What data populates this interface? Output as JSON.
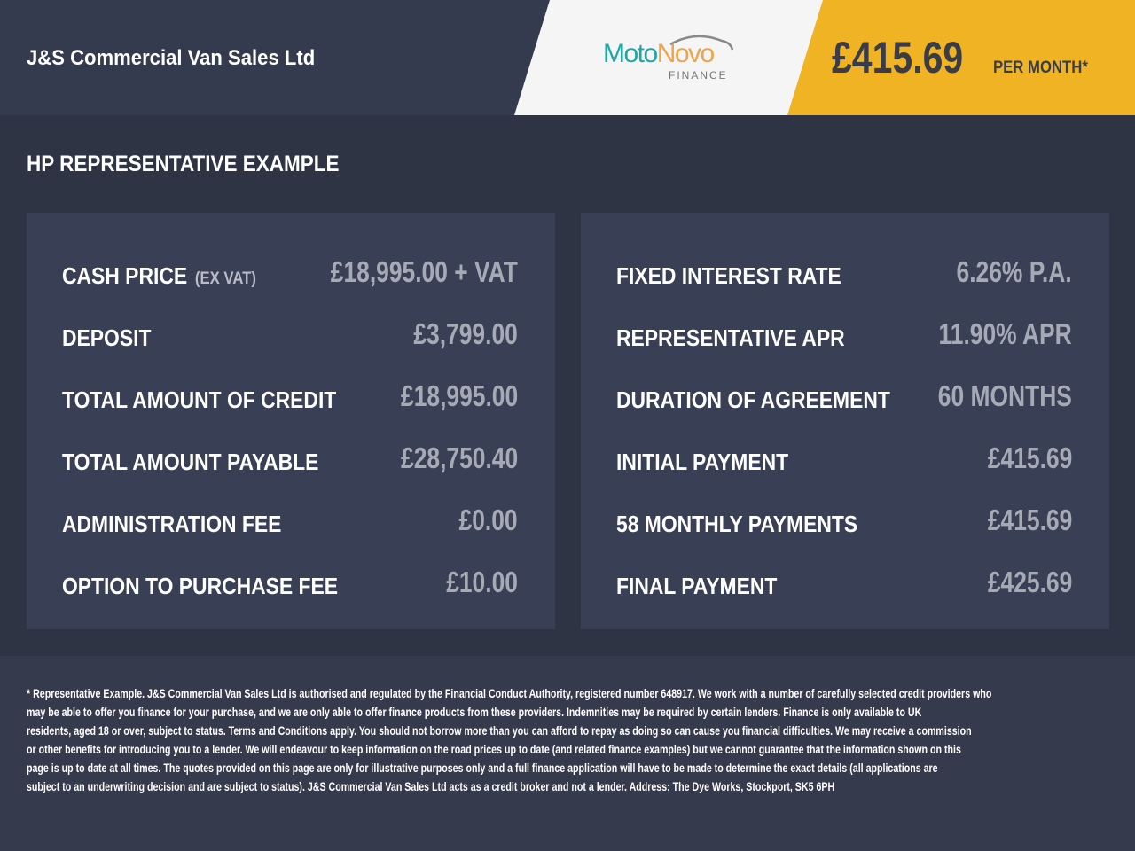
{
  "header": {
    "dealer": "J&S Commercial Van Sales Ltd",
    "logo": {
      "part1": "Moto",
      "part2": "Novo",
      "sub": "FINANCE"
    },
    "monthly_price": "£415.69",
    "per_month": "PER MONTH*"
  },
  "colors": {
    "accent": "#f0b323",
    "teal": "#1ea7a5",
    "orange": "#f0a44a"
  },
  "section_title": "HP REPRESENTATIVE EXAMPLE",
  "left": [
    {
      "label": "CASH PRICE",
      "note": "(EX VAT)",
      "value": "£18,995.00 + VAT"
    },
    {
      "label": "DEPOSIT",
      "value": "£3,799.00"
    },
    {
      "label": "TOTAL AMOUNT OF CREDIT",
      "value": "£18,995.00"
    },
    {
      "label": "TOTAL AMOUNT PAYABLE",
      "value": "£28,750.40"
    },
    {
      "label": "ADMINISTRATION FEE",
      "value": "£0.00"
    },
    {
      "label": "OPTION TO PURCHASE FEE",
      "value": "£10.00"
    }
  ],
  "right": [
    {
      "label": "FIXED INTEREST RATE",
      "value": "6.26% P.A."
    },
    {
      "label": "REPRESENTATIVE APR",
      "value": "11.90% APR"
    },
    {
      "label": "DURATION OF AGREEMENT",
      "value": "60 MONTHS"
    },
    {
      "label": "INITIAL PAYMENT",
      "value": "£415.69"
    },
    {
      "label": "58 MONTHLY PAYMENTS",
      "value": "£415.69"
    },
    {
      "label": "FINAL PAYMENT",
      "value": "£425.69"
    }
  ],
  "disclaimer": [
    "* Representative Example. J&S Commercial Van Sales Ltd is authorised and regulated by the Financial Conduct Authority, registered number 648917. We work with a number of carefully selected credit providers who",
    "may be able to offer you finance for your purchase, and we are only able to offer finance products from these providers. Indemnities may be required by certain lenders. Finance is only available to UK",
    "residents, aged 18 or over, subject to status. Terms and Conditions apply. You should not borrow more than you can afford to repay as doing so can cause you financial difficulties. We may receive a commission",
    "or other benefits for introducing you to a lender. We will endeavour to keep information on the road prices up to date (and related finance examples) but we cannot guarantee that the information shown on this",
    "page is up to date at all times. The quotes provided on this page are only for illustrative purposes only and a full finance application will have to be made to determine the exact details (all applications are",
    "subject to an underwriting decision and are subject to status). J&S Commercial Van Sales Ltd acts as a credit broker and not a lender. Address: The Dye Works, Stockport, SK5 6PH"
  ]
}
